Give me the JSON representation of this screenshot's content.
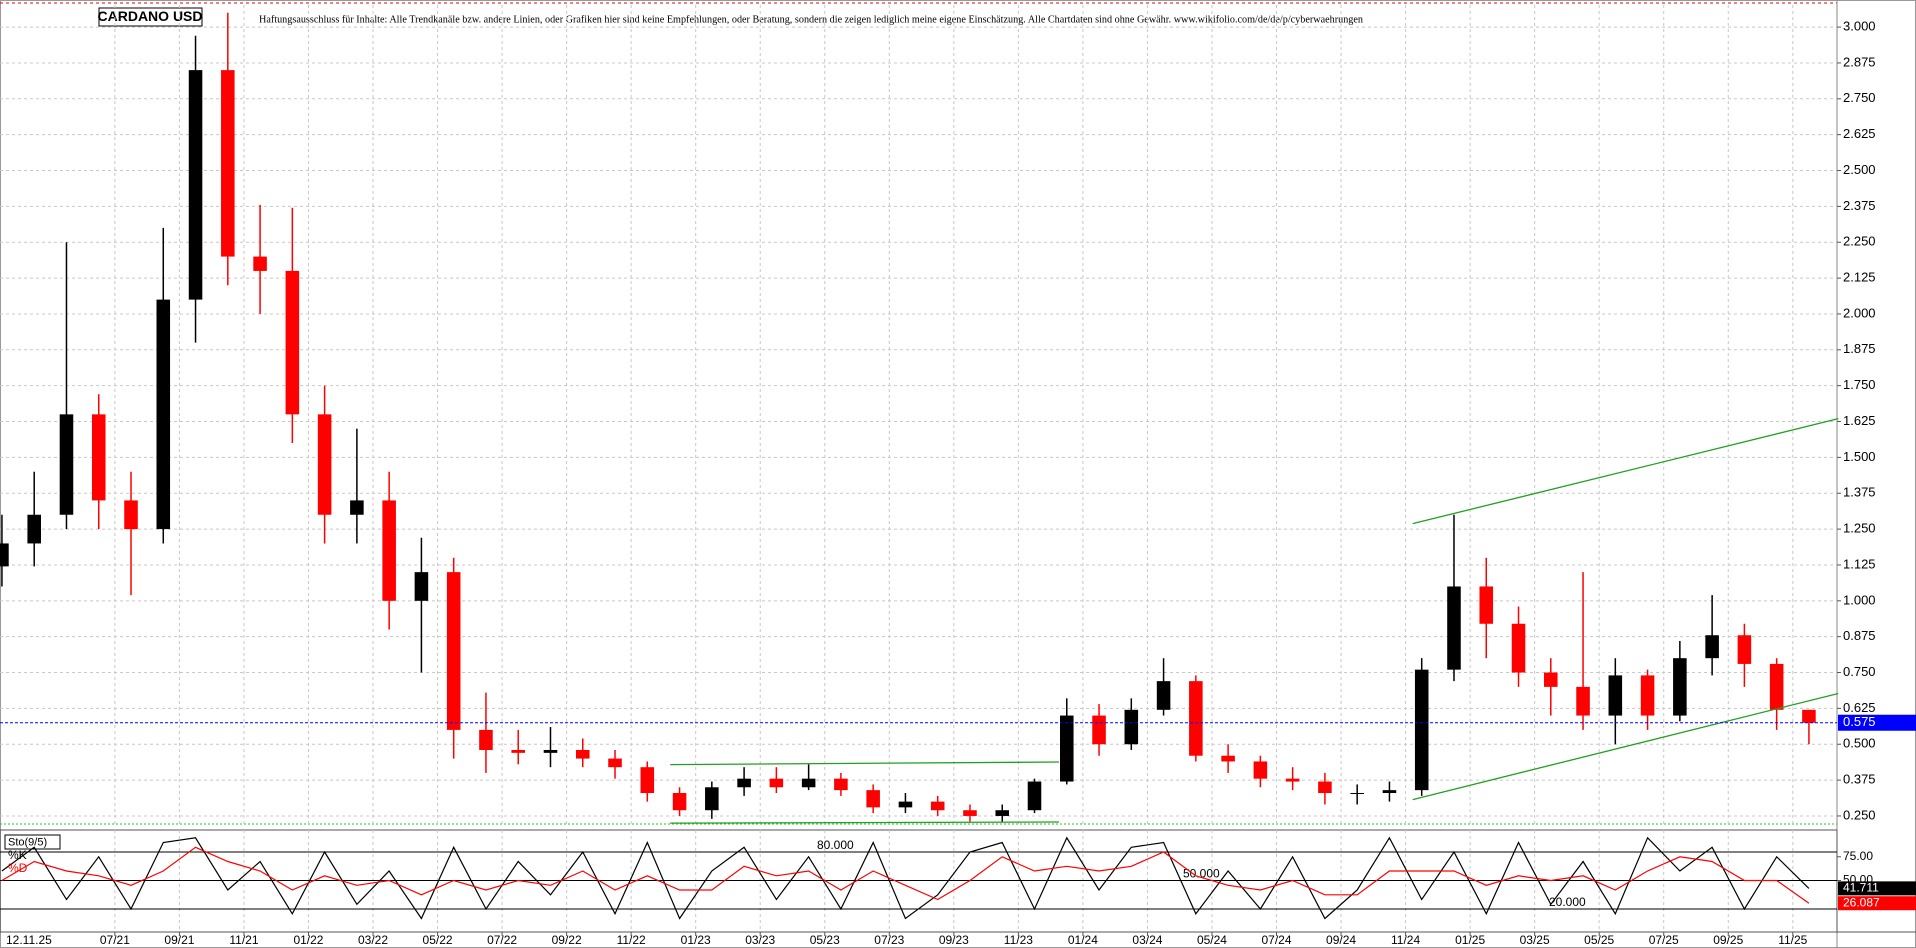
{
  "chart_data": [
    {
      "type": "candlestick",
      "title": "CARDANO USD",
      "annotations": [
        "Haftungsausschluss für Inhalte: Alle Trendkanäle bzw. andere Linien, oder Grafiken hier sind keine Empfehlungen, oder Beratung, sondern die zeigen lediglich meine eigene Einschätzung. Alle Chartdaten sind ohne Gewähr.  www.wikifolio.com/de/de/p/cyberwaehrungen",
        "12.11.25"
      ],
      "x": [
        2.5,
        3.5,
        4.5,
        5.5,
        6.5,
        7.5,
        8.5,
        9.5,
        10.5,
        11.5,
        12.5,
        13.5,
        14.5,
        15.5,
        16.5,
        17.5,
        18.5,
        19.5,
        20.5,
        21.5,
        22.5,
        23.5,
        24.5,
        25.5,
        26.5,
        27.5,
        28.5,
        29.5,
        30.5,
        31.5,
        32.5,
        33.5,
        34.5,
        35.5,
        36.5,
        37.5,
        38.5,
        39.5,
        40.5,
        41.5,
        42.5,
        43.5,
        44.5,
        45.5,
        46.5,
        47.5,
        48.5,
        49.5,
        50.5,
        51.5,
        52.5,
        53.5,
        54.5,
        55.5,
        56.5,
        57.5,
        58.5
      ],
      "open": [
        1.12,
        1.2,
        1.3,
        1.65,
        1.35,
        1.25,
        2.05,
        2.85,
        2.2,
        2.15,
        1.65,
        1.3,
        1.35,
        1.0,
        1.1,
        0.55,
        0.48,
        0.47,
        0.48,
        0.45,
        0.42,
        0.33,
        0.27,
        0.35,
        0.38,
        0.35,
        0.38,
        0.34,
        0.28,
        0.3,
        0.27,
        0.25,
        0.27,
        0.37,
        0.6,
        0.5,
        0.62,
        0.72,
        0.46,
        0.44,
        0.38,
        0.37,
        0.33,
        0.33,
        0.34,
        0.76,
        1.05,
        0.92,
        0.75,
        0.7,
        0.6,
        0.74,
        0.6,
        0.8,
        0.88,
        0.78,
        0.62
      ],
      "high": [
        1.3,
        1.45,
        2.25,
        1.72,
        1.45,
        2.3,
        2.97,
        3.05,
        2.38,
        2.37,
        1.75,
        1.6,
        1.45,
        1.22,
        1.15,
        0.68,
        0.55,
        0.56,
        0.52,
        0.48,
        0.44,
        0.35,
        0.37,
        0.42,
        0.42,
        0.43,
        0.4,
        0.36,
        0.33,
        0.32,
        0.29,
        0.29,
        0.38,
        0.66,
        0.64,
        0.66,
        0.8,
        0.74,
        0.5,
        0.46,
        0.42,
        0.4,
        0.36,
        0.37,
        0.8,
        1.3,
        1.15,
        0.98,
        0.8,
        1.1,
        0.8,
        0.76,
        0.86,
        1.02,
        0.92,
        0.8,
        0.62
      ],
      "low": [
        1.05,
        1.12,
        1.25,
        1.25,
        1.02,
        1.2,
        1.9,
        2.1,
        2.0,
        1.55,
        1.2,
        1.2,
        0.9,
        0.75,
        0.45,
        0.4,
        0.43,
        0.42,
        0.42,
        0.38,
        0.3,
        0.25,
        0.24,
        0.32,
        0.33,
        0.34,
        0.32,
        0.26,
        0.26,
        0.25,
        0.23,
        0.23,
        0.26,
        0.36,
        0.46,
        0.48,
        0.6,
        0.44,
        0.4,
        0.35,
        0.34,
        0.29,
        0.29,
        0.3,
        0.32,
        0.72,
        0.8,
        0.7,
        0.6,
        0.55,
        0.5,
        0.55,
        0.58,
        0.74,
        0.7,
        0.55,
        0.5
      ],
      "close": [
        1.2,
        1.3,
        1.65,
        1.35,
        1.25,
        2.05,
        2.85,
        2.2,
        2.15,
        1.65,
        1.3,
        1.35,
        1.0,
        1.1,
        0.55,
        0.48,
        0.47,
        0.48,
        0.45,
        0.42,
        0.33,
        0.27,
        0.35,
        0.38,
        0.35,
        0.38,
        0.34,
        0.28,
        0.3,
        0.27,
        0.25,
        0.27,
        0.37,
        0.6,
        0.5,
        0.62,
        0.72,
        0.46,
        0.44,
        0.38,
        0.37,
        0.33,
        0.33,
        0.34,
        0.76,
        1.05,
        0.92,
        0.75,
        0.7,
        0.6,
        0.74,
        0.6,
        0.8,
        0.88,
        0.78,
        0.62,
        0.575
      ],
      "up_color": "#000000",
      "down_color": "#ff0000",
      "last_color": "#0000ff",
      "trendlines": [
        {
          "x": [
            46.22,
            59.41
          ],
          "y": [
            1.269,
            1.635
          ]
        },
        {
          "x": [
            46.22,
            59.41
          ],
          "y": [
            0.307,
            0.677
          ]
        },
        {
          "x": [
            23.21,
            35.26
          ],
          "y": [
            0.429,
            0.438
          ]
        },
        {
          "x": [
            23.21,
            35.26
          ],
          "y": [
            0.225,
            0.229
          ]
        }
      ],
      "trendline_color": "#22a022",
      "xlim": [
        2.44,
        59.37
      ],
      "ylim": [
        0.215,
        3.077
      ],
      "xticks": [
        {
          "value": 6,
          "label": "07/21"
        },
        {
          "value": 8,
          "label": "09/21"
        },
        {
          "value": 10,
          "label": "11/21"
        },
        {
          "value": 12,
          "label": "01/22"
        },
        {
          "value": 14,
          "label": "03/22"
        },
        {
          "value": 16,
          "label": "05/22"
        },
        {
          "value": 18,
          "label": "07/22"
        },
        {
          "value": 20,
          "label": "09/22"
        },
        {
          "value": 22,
          "label": "11/22"
        },
        {
          "value": 24,
          "label": "01/23"
        },
        {
          "value": 26,
          "label": "03/23"
        },
        {
          "value": 28,
          "label": "05/23"
        },
        {
          "value": 30,
          "label": "07/23"
        },
        {
          "value": 32,
          "label": "09/23"
        },
        {
          "value": 34,
          "label": "11/23"
        },
        {
          "value": 36,
          "label": "01/24"
        },
        {
          "value": 38,
          "label": "03/24"
        },
        {
          "value": 40,
          "label": "05/24"
        },
        {
          "value": 42,
          "label": "07/24"
        },
        {
          "value": 44,
          "label": "09/24"
        },
        {
          "value": 46,
          "label": "11/24"
        },
        {
          "value": 48,
          "label": "01/25"
        },
        {
          "value": 50,
          "label": "03/25"
        },
        {
          "value": 52,
          "label": "05/25"
        },
        {
          "value": 54,
          "label": "07/25"
        },
        {
          "value": 56,
          "label": "09/25"
        },
        {
          "value": 58,
          "label": "11/25"
        }
      ],
      "yticks": [
        {
          "value": 0.25,
          "label": "0.250"
        },
        {
          "value": 0.375,
          "label": "0.375"
        },
        {
          "value": 0.5,
          "label": "0.500"
        },
        {
          "value": 0.625,
          "label": "0.625"
        },
        {
          "value": 0.75,
          "label": "0.750"
        },
        {
          "value": 0.875,
          "label": "0.875"
        },
        {
          "value": 1,
          "label": "1.000"
        },
        {
          "value": 1.125,
          "label": "1.125"
        },
        {
          "value": 1.25,
          "label": "1.250"
        },
        {
          "value": 1.375,
          "label": "1.375"
        },
        {
          "value": 1.5,
          "label": "1.500"
        },
        {
          "value": 1.625,
          "label": "1.625"
        },
        {
          "value": 1.75,
          "label": "1.750"
        },
        {
          "value": 1.875,
          "label": "1.875"
        },
        {
          "value": 2,
          "label": "2.000"
        },
        {
          "value": 2.125,
          "label": "2.125"
        },
        {
          "value": 2.25,
          "label": "2.250"
        },
        {
          "value": 2.375,
          "label": "2.375"
        },
        {
          "value": 2.5,
          "label": "2.500"
        },
        {
          "value": 2.625,
          "label": "2.625"
        },
        {
          "value": 2.75,
          "label": "2.750"
        },
        {
          "value": 2.875,
          "label": "2.875"
        },
        {
          "value": 3,
          "label": "3.000"
        }
      ],
      "grid": true
    },
    {
      "type": "line",
      "title": "Sto(9/5)",
      "x": [
        2.5,
        3.5,
        4.5,
        5.5,
        6.5,
        7.5,
        8.5,
        9.5,
        10.5,
        11.5,
        12.5,
        13.5,
        14.5,
        15.5,
        16.5,
        17.5,
        18.5,
        19.5,
        20.5,
        21.5,
        22.5,
        23.5,
        24.5,
        25.5,
        26.5,
        27.5,
        28.5,
        29.5,
        30.5,
        31.5,
        32.5,
        33.5,
        34.5,
        35.5,
        36.5,
        37.5,
        38.5,
        39.5,
        40.5,
        41.5,
        42.5,
        43.5,
        44.5,
        45.5,
        46.5,
        47.5,
        48.5,
        49.5,
        50.5,
        51.5,
        52.5,
        53.5,
        54.5,
        55.5,
        56.5,
        57.5,
        58.5
      ],
      "series": [
        {
          "name": "%K",
          "color": "#000000",
          "values": [
            60,
            85,
            30,
            75,
            20,
            90,
            95,
            40,
            70,
            15,
            80,
            25,
            60,
            10,
            85,
            20,
            70,
            35,
            80,
            15,
            90,
            10,
            60,
            85,
            30,
            75,
            20,
            90,
            10,
            35,
            80,
            90,
            20,
            95,
            40,
            85,
            90,
            15,
            60,
            20,
            75,
            10,
            40,
            95,
            30,
            80,
            15,
            90,
            25,
            70,
            15,
            95,
            60,
            85,
            20,
            75,
            41.711
          ]
        },
        {
          "name": "%D",
          "color": "#ff0000",
          "values": [
            50,
            70,
            60,
            55,
            45,
            60,
            85,
            70,
            60,
            40,
            55,
            45,
            50,
            35,
            50,
            40,
            50,
            45,
            60,
            40,
            55,
            40,
            40,
            65,
            55,
            60,
            40,
            60,
            45,
            30,
            50,
            75,
            60,
            65,
            60,
            65,
            80,
            55,
            45,
            40,
            50,
            35,
            35,
            60,
            60,
            60,
            45,
            55,
            50,
            55,
            40,
            60,
            75,
            70,
            50,
            50,
            26.087
          ]
        }
      ],
      "levels": [
        {
          "value": 80,
          "label": "80.000"
        },
        {
          "value": 50,
          "label": "50.000"
        },
        {
          "value": 20,
          "label": "20.000"
        }
      ],
      "xlim": [
        2.44,
        59.37
      ],
      "ylim": [
        0,
        100
      ],
      "yticks": [
        {
          "value": 75,
          "label": "75.00"
        },
        {
          "value": 50,
          "label": "50.00"
        }
      ],
      "grid": true
    }
  ]
}
